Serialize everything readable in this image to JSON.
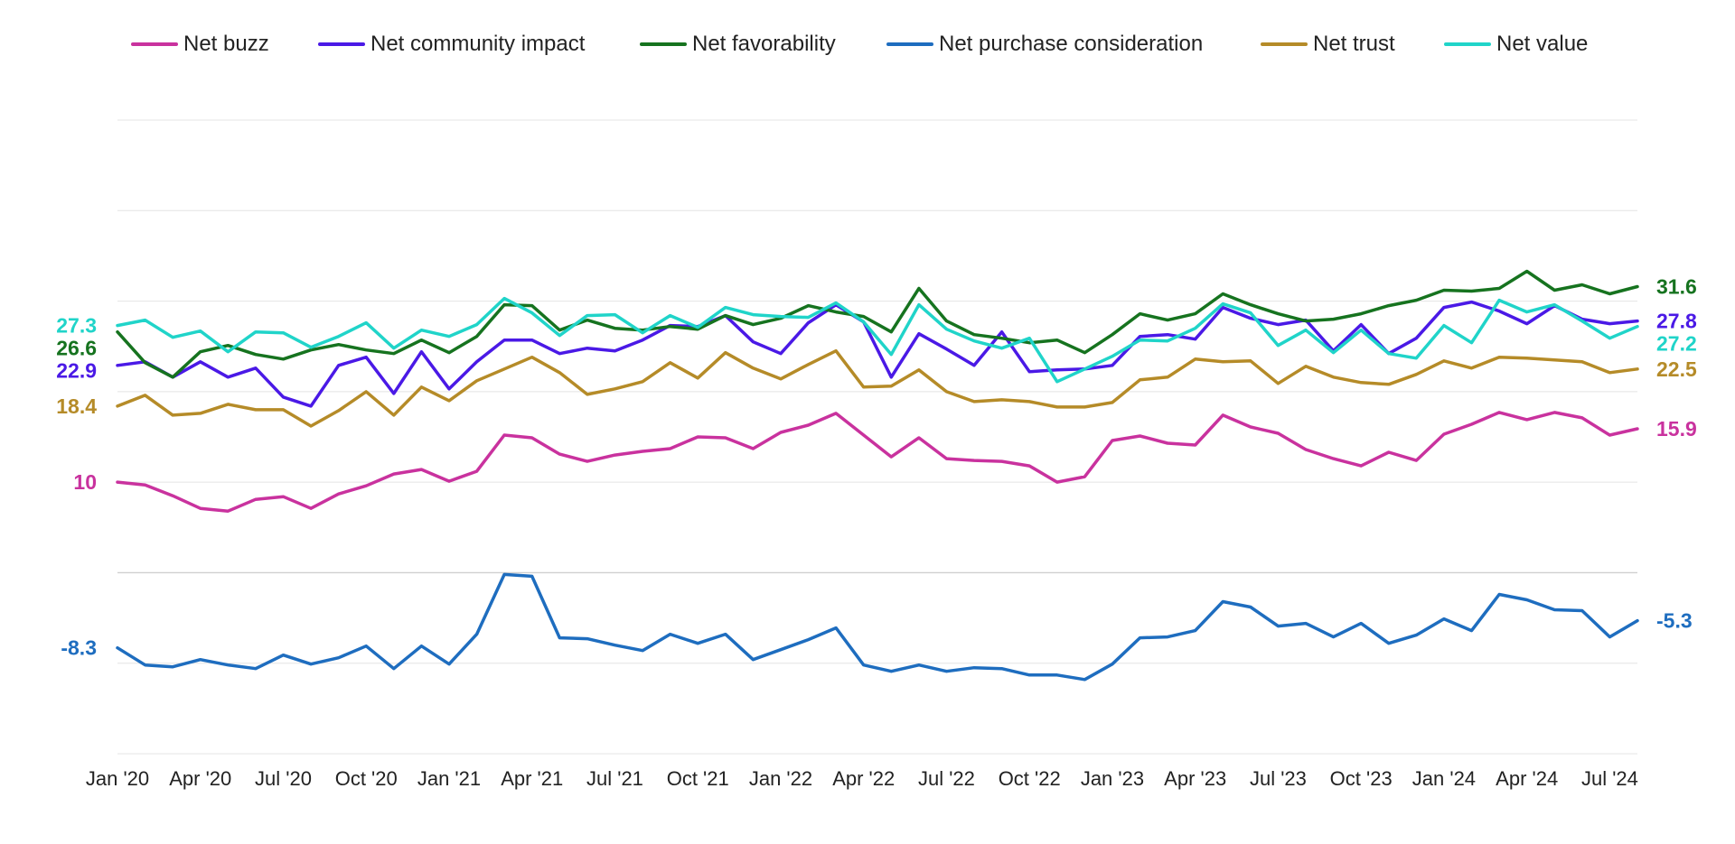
{
  "chart_data": {
    "type": "line",
    "title": "",
    "xlabel": "",
    "ylabel": "",
    "ylim": [
      -20,
      50
    ],
    "grid": true,
    "legend_position": "top",
    "x": [
      "Jan '20",
      "Feb '20",
      "Mar '20",
      "Apr '20",
      "May '20",
      "Jun '20",
      "Jul '20",
      "Aug '20",
      "Sep '20",
      "Oct '20",
      "Nov '20",
      "Dec '20",
      "Jan '21",
      "Feb '21",
      "Mar '21",
      "Apr '21",
      "May '21",
      "Jun '21",
      "Jul '21",
      "Aug '21",
      "Sep '21",
      "Oct '21",
      "Nov '21",
      "Dec '21",
      "Jan '22",
      "Feb '22",
      "Mar '22",
      "Apr '22",
      "May '22",
      "Jun '22",
      "Jul '22",
      "Aug '22",
      "Sep '22",
      "Oct '22",
      "Nov '22",
      "Dec '22",
      "Jan '23",
      "Feb '23",
      "Mar '23",
      "Apr '23",
      "May '23",
      "Jun '23",
      "Jul '23",
      "Aug '23",
      "Sep '23",
      "Oct '23",
      "Nov '23",
      "Dec '23",
      "Jan '24",
      "Feb '24",
      "Mar '24",
      "Apr '24",
      "May '24",
      "Jun '24",
      "Jul '24",
      "Aug '24"
    ],
    "x_ticks": [
      "Jan '20",
      "Apr '20",
      "Jul '20",
      "Oct '20",
      "Jan '21",
      "Apr '21",
      "Jul '21",
      "Oct '21",
      "Jan '22",
      "Apr '22",
      "Jul '22",
      "Oct '22",
      "Jan '23",
      "Apr '23",
      "Jul '23",
      "Oct '23",
      "Jan '24",
      "Apr '24",
      "Jul '24"
    ],
    "series": [
      {
        "name": "Net buzz",
        "color": "#c9329e",
        "start_label": "10",
        "end_label": "15.9",
        "values": [
          10,
          9.7,
          8.5,
          7.1,
          6.8,
          8.1,
          8.4,
          7.1,
          8.7,
          9.6,
          10.9,
          11.4,
          10.1,
          11.2,
          15.2,
          14.9,
          13.1,
          12.3,
          13,
          13.4,
          13.7,
          15,
          14.9,
          13.7,
          15.5,
          16.3,
          17.6,
          15.2,
          12.8,
          14.9,
          12.6,
          12.4,
          12.3,
          11.8,
          10,
          10.6,
          14.6,
          15.1,
          14.3,
          14.1,
          17.4,
          16.1,
          15.4,
          13.6,
          12.6,
          11.8,
          13.3,
          12.4,
          15.3,
          16.4,
          17.7,
          16.9,
          17.7,
          17.1,
          15.2,
          15.9
        ]
      },
      {
        "name": "Net community impact",
        "color": "#4a19e6",
        "start_label": "22.9",
        "end_label": "27.8",
        "values": [
          22.9,
          23.3,
          21.6,
          23.3,
          21.6,
          22.6,
          19.4,
          18.4,
          22.9,
          23.8,
          19.8,
          24.4,
          20.3,
          23.3,
          25.7,
          25.7,
          24.2,
          24.8,
          24.5,
          25.7,
          27.3,
          27.2,
          28.4,
          25.5,
          24.2,
          27.6,
          29.6,
          27.7,
          21.6,
          26.4,
          24.7,
          22.9,
          26.6,
          22.2,
          22.4,
          22.5,
          22.9,
          26.1,
          26.3,
          25.8,
          29.3,
          28.1,
          27.4,
          27.9,
          24.5,
          27.4,
          24.2,
          25.9,
          29.3,
          29.9,
          28.9,
          27.5,
          29.5,
          28,
          27.5,
          27.8
        ]
      },
      {
        "name": "Net favorability",
        "color": "#16731f",
        "start_label": "26.6",
        "end_label": "31.6",
        "values": [
          26.6,
          23.2,
          21.6,
          24.4,
          25.1,
          24.1,
          23.6,
          24.6,
          25.2,
          24.6,
          24.2,
          25.7,
          24.3,
          26.1,
          29.6,
          29.5,
          26.8,
          27.9,
          27,
          26.8,
          27.2,
          26.9,
          28.4,
          27.4,
          28.1,
          29.5,
          28.8,
          28.3,
          26.6,
          31.4,
          27.8,
          26.3,
          25.9,
          25.4,
          25.7,
          24.3,
          26.3,
          28.6,
          27.9,
          28.6,
          30.8,
          29.6,
          28.6,
          27.8,
          28,
          28.6,
          29.5,
          30.1,
          31.2,
          31.1,
          31.4,
          33.3,
          31.2,
          31.8,
          30.8,
          31.6
        ]
      },
      {
        "name": "Net purchase consideration",
        "color": "#1e6dbf",
        "start_label": "-8.3",
        "end_label": "-5.3",
        "values": [
          -8.3,
          -10.2,
          -10.4,
          -9.6,
          -10.2,
          -10.6,
          -9.1,
          -10.1,
          -9.4,
          -8.1,
          -10.6,
          -8.1,
          -10.1,
          -6.8,
          -0.2,
          -0.4,
          -7.2,
          -7.3,
          -8,
          -8.6,
          -6.8,
          -7.8,
          -6.8,
          -9.6,
          -8.5,
          -7.4,
          -6.1,
          -10.2,
          -10.9,
          -10.2,
          -10.9,
          -10.5,
          -10.6,
          -11.3,
          -11.3,
          -11.8,
          -10.1,
          -7.2,
          -7.1,
          -6.4,
          -3.2,
          -3.8,
          -5.9,
          -5.6,
          -7.1,
          -5.6,
          -7.8,
          -6.9,
          -5.1,
          -6.4,
          -2.4,
          -3,
          -4.1,
          -4.2,
          -7.1,
          -5.3
        ]
      },
      {
        "name": "Net trust",
        "color": "#b58b28",
        "start_label": "18.4",
        "end_label": "22.5",
        "values": [
          18.4,
          19.6,
          17.4,
          17.6,
          18.6,
          18,
          18,
          16.2,
          17.9,
          20,
          17.4,
          20.5,
          19,
          21.2,
          22.5,
          23.8,
          22.1,
          19.7,
          20.3,
          21.1,
          23.2,
          21.5,
          24.3,
          22.6,
          21.4,
          23,
          24.5,
          20.5,
          20.6,
          22.4,
          20,
          18.9,
          19.1,
          18.9,
          18.3,
          18.3,
          18.8,
          21.3,
          21.6,
          23.6,
          23.3,
          23.4,
          20.9,
          22.8,
          21.6,
          21,
          20.8,
          21.9,
          23.4,
          22.6,
          23.8,
          23.7,
          23.5,
          23.3,
          22.1,
          22.5
        ]
      },
      {
        "name": "Net value",
        "color": "#20d4c9",
        "start_label": "27.3",
        "end_label": "27.2",
        "values": [
          27.3,
          27.9,
          26,
          26.7,
          24.4,
          26.6,
          26.5,
          24.9,
          26.1,
          27.6,
          24.8,
          26.8,
          26.1,
          27.4,
          30.3,
          28.7,
          26.2,
          28.4,
          28.5,
          26.5,
          28.4,
          27.1,
          29.3,
          28.5,
          28.3,
          28.2,
          29.8,
          27.7,
          24.1,
          29.6,
          26.9,
          25.6,
          24.8,
          25.9,
          21.1,
          22.5,
          23.9,
          25.7,
          25.6,
          27,
          29.7,
          28.7,
          25.1,
          26.8,
          24.3,
          26.8,
          24.2,
          23.7,
          27.3,
          25.4,
          30.1,
          28.8,
          29.6,
          27.8,
          25.9,
          27.2
        ]
      }
    ]
  }
}
